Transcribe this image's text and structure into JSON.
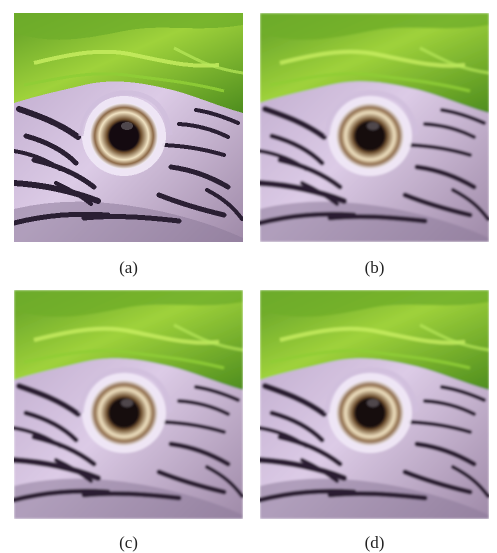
{
  "panels": [
    {
      "label": "(a)",
      "rendering": "pixelated"
    },
    {
      "label": "(b)",
      "rendering": "smooth"
    },
    {
      "label": "(c)",
      "rendering": "smooth"
    },
    {
      "label": "(d)",
      "rendering": "smooth"
    }
  ],
  "colors": {
    "feather_green_dark": "#3f7d1f",
    "feather_green_light": "#9fd23b",
    "skin_lavender": "#cbb8d6",
    "stripe_dark": "#2a1f33",
    "iris_ring": "#d9c49a",
    "pupil": "#140a10"
  }
}
